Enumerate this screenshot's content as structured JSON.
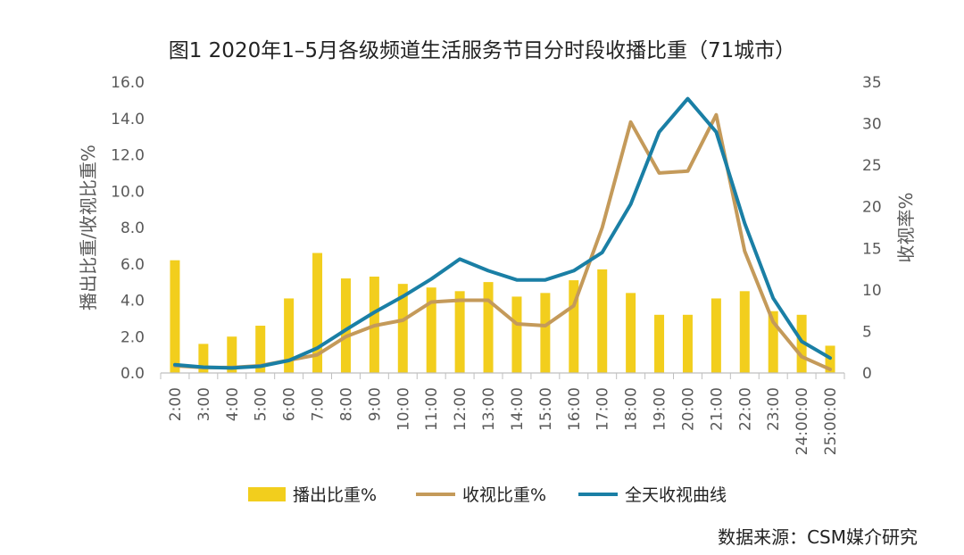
{
  "chart_data": {
    "type": "bar",
    "title": "图1  2020年1–5月各级频道生活服务节目分时段收播比重（71城市）",
    "ylabel_left": "播出比重/收视比重%",
    "ylabel_right": "收视率%",
    "ylim_left": [
      0,
      16
    ],
    "ylim_right": [
      0,
      35
    ],
    "yticks_left": [
      "0.0",
      "2.0",
      "4.0",
      "6.0",
      "8.0",
      "10.0",
      "12.0",
      "14.0",
      "16.0"
    ],
    "yticks_right": [
      "0",
      "5",
      "10",
      "15",
      "20",
      "25",
      "30",
      "35"
    ],
    "categories": [
      "2:00",
      "3:00",
      "4:00",
      "5:00",
      "6:00",
      "7:00",
      "8:00",
      "9:00",
      "10:00",
      "11:00",
      "12:00",
      "13:00",
      "14:00",
      "15:00",
      "16:00",
      "17:00",
      "18:00",
      "19:00",
      "20:00",
      "21:00",
      "22:00",
      "23:00",
      "24:00:00",
      "25:00:00"
    ],
    "series": [
      {
        "name": "播出比重%",
        "type": "bar",
        "axis": "left",
        "color": "#F2CE1D",
        "values": [
          6.2,
          1.6,
          2.0,
          2.6,
          4.1,
          6.6,
          5.2,
          5.3,
          4.9,
          4.7,
          4.5,
          5.0,
          4.2,
          4.4,
          5.1,
          5.7,
          4.4,
          3.2,
          3.2,
          4.1,
          4.5,
          3.4,
          3.2,
          1.5
        ]
      },
      {
        "name": "收视比重%",
        "type": "line",
        "axis": "left",
        "color": "#C49A5A",
        "values": [
          0.4,
          0.3,
          0.3,
          0.4,
          0.7,
          1.0,
          2.0,
          2.6,
          2.9,
          3.9,
          4.0,
          4.0,
          2.7,
          2.6,
          3.7,
          8.0,
          13.8,
          11.0,
          11.1,
          14.2,
          6.7,
          2.8,
          0.9,
          0.2
        ]
      },
      {
        "name": "全天收视曲线",
        "type": "line",
        "axis": "right",
        "color": "#1A7FA5",
        "values": [
          1.0,
          0.7,
          0.6,
          0.8,
          1.5,
          3.0,
          5.2,
          7.3,
          9.2,
          11.3,
          13.7,
          12.3,
          11.2,
          11.2,
          12.3,
          14.5,
          20.3,
          29.0,
          33.0,
          29.0,
          18.0,
          9.0,
          3.8,
          1.8
        ]
      }
    ],
    "legend_position": "bottom",
    "source": "数据来源：CSM媒介研究"
  }
}
